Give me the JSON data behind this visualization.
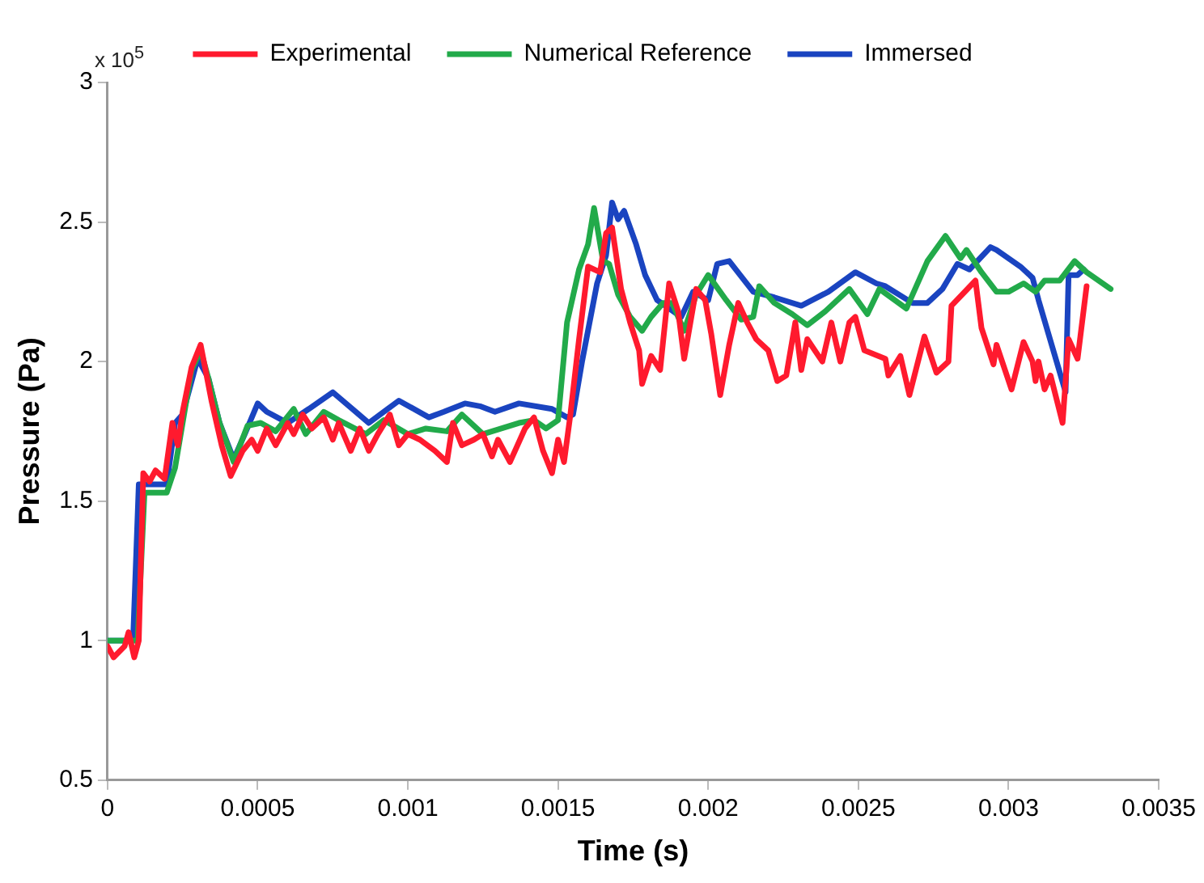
{
  "chart_data": {
    "type": "line",
    "xlabel": "Time (s)",
    "ylabel": "Pressure (Pa)",
    "annotations": [
      "x 10$^{5}$"
    ],
    "xlim": [
      0,
      0.0035
    ],
    "xticks": [
      0,
      0.0005,
      0.001,
      0.0015,
      0.002,
      0.0025,
      0.003,
      0.0035
    ],
    "ylim": [
      0.5,
      3
    ],
    "yticks": [
      0.5,
      1,
      1.5,
      2,
      2.5,
      3
    ],
    "grid": false,
    "legend": "top",
    "marker": "none",
    "line_style": "solid",
    "series": [
      {
        "name": "Experimental",
        "color": "#ff1a2e",
        "x": [
          0,
          2e-05,
          5.7e-05,
          7e-05,
          8.9e-05,
          0.000104,
          0.000119,
          0.00014,
          0.00016,
          0.00019,
          0.000216,
          0.000234,
          0.00025,
          0.00028,
          0.00031,
          0.000346,
          0.00038,
          0.00041,
          0.00045,
          0.00048,
          0.0005,
          0.00053,
          0.00056,
          0.0006,
          0.00062,
          0.00065,
          0.00068,
          0.00072,
          0.00075,
          0.00077,
          0.00081,
          0.00084,
          0.00087,
          0.0009,
          0.00094,
          0.00097,
          0.001,
          0.00104,
          0.00109,
          0.00113,
          0.00115,
          0.00118,
          0.00122,
          0.00125,
          0.00128,
          0.0013,
          0.00134,
          0.00139,
          0.00142,
          0.00145,
          0.00148,
          0.0015,
          0.00152,
          0.00154,
          0.00157,
          0.0016,
          0.00164,
          0.00166,
          0.00168,
          0.00171,
          0.00174,
          0.00177,
          0.00178,
          0.00181,
          0.00184,
          0.00187,
          0.0019,
          0.00192,
          0.00196,
          0.00199,
          0.00201,
          0.00204,
          0.00207,
          0.0021,
          0.00213,
          0.00216,
          0.0022,
          0.00223,
          0.00226,
          0.00229,
          0.00231,
          0.00233,
          0.00238,
          0.00241,
          0.00244,
          0.00247,
          0.00249,
          0.00252,
          0.00259,
          0.0026,
          0.00264,
          0.00267,
          0.00272,
          0.00276,
          0.0028,
          0.00281,
          0.00289,
          0.00291,
          0.00295,
          0.00296,
          0.00301,
          0.00305,
          0.00308,
          0.00309,
          0.0031,
          0.00312,
          0.00314,
          0.00318,
          0.0032,
          0.00323,
          0.00326
        ],
        "values": [
          0.98,
          0.94,
          0.98,
          1.03,
          0.94,
          1.0,
          1.6,
          1.57,
          1.61,
          1.58,
          1.78,
          1.7,
          1.82,
          1.98,
          2.06,
          1.86,
          1.7,
          1.59,
          1.68,
          1.72,
          1.68,
          1.76,
          1.7,
          1.78,
          1.74,
          1.81,
          1.76,
          1.8,
          1.72,
          1.78,
          1.68,
          1.76,
          1.68,
          1.74,
          1.81,
          1.7,
          1.74,
          1.72,
          1.68,
          1.64,
          1.78,
          1.7,
          1.72,
          1.74,
          1.66,
          1.72,
          1.64,
          1.76,
          1.8,
          1.68,
          1.6,
          1.72,
          1.64,
          1.8,
          2.08,
          2.34,
          2.32,
          2.46,
          2.48,
          2.26,
          2.14,
          2.04,
          1.92,
          2.02,
          1.97,
          2.28,
          2.18,
          2.01,
          2.26,
          2.22,
          2.1,
          1.88,
          2.06,
          2.21,
          2.14,
          2.08,
          2.04,
          1.93,
          1.95,
          2.14,
          1.97,
          2.08,
          2.0,
          2.14,
          2.0,
          2.14,
          2.16,
          2.04,
          2.01,
          1.95,
          2.02,
          1.88,
          2.09,
          1.96,
          2.0,
          2.2,
          2.29,
          2.12,
          1.99,
          2.06,
          1.9,
          2.07,
          2.0,
          1.93,
          2.0,
          1.9,
          1.95,
          1.78,
          2.08,
          2.01,
          2.27
        ]
      },
      {
        "name": "Numerical Reference",
        "color": "#22aa4a",
        "x": [
          0,
          0.0001,
          0.000123,
          0.000197,
          0.000225,
          0.00025,
          0.00028,
          0.00031,
          0.000336,
          0.000373,
          0.00042,
          0.000466,
          0.00051,
          0.00056,
          0.00062,
          0.00066,
          0.00072,
          0.00077,
          0.00086,
          0.00092,
          0.001,
          0.00106,
          0.00113,
          0.00118,
          0.00125,
          0.00137,
          0.00142,
          0.00146,
          0.0015,
          0.00153,
          0.00157,
          0.0016,
          0.00162,
          0.00165,
          0.00167,
          0.0017,
          0.00174,
          0.00178,
          0.00181,
          0.00185,
          0.00188,
          0.00192,
          0.00196,
          0.002,
          0.00206,
          0.00211,
          0.00215,
          0.00217,
          0.00222,
          0.00228,
          0.00233,
          0.00239,
          0.00247,
          0.00253,
          0.00257,
          0.00266,
          0.00273,
          0.00279,
          0.00284,
          0.00286,
          0.00291,
          0.00296,
          0.003,
          0.00305,
          0.00309,
          0.00312,
          0.00317,
          0.00322,
          0.00326,
          0.00334
        ],
        "values": [
          1.0,
          1.0,
          1.53,
          1.53,
          1.62,
          1.78,
          1.97,
          2.04,
          1.94,
          1.78,
          1.64,
          1.77,
          1.78,
          1.75,
          1.83,
          1.74,
          1.82,
          1.79,
          1.74,
          1.79,
          1.74,
          1.76,
          1.75,
          1.81,
          1.74,
          1.78,
          1.79,
          1.76,
          1.79,
          2.14,
          2.33,
          2.42,
          2.55,
          2.36,
          2.35,
          2.24,
          2.16,
          2.11,
          2.16,
          2.21,
          2.21,
          2.11,
          2.24,
          2.31,
          2.22,
          2.15,
          2.16,
          2.27,
          2.21,
          2.17,
          2.13,
          2.18,
          2.26,
          2.17,
          2.26,
          2.19,
          2.36,
          2.45,
          2.37,
          2.4,
          2.32,
          2.25,
          2.25,
          2.28,
          2.25,
          2.29,
          2.29,
          2.36,
          2.32,
          2.26
        ]
      },
      {
        "name": "Immersed",
        "color": "#1a44c0",
        "x": [
          0,
          8.5e-05,
          0.000104,
          0.000197,
          0.000225,
          0.00025,
          0.0003,
          0.000336,
          0.000373,
          0.00042,
          0.000457,
          0.0005,
          0.00053,
          0.0006,
          0.00067,
          0.00075,
          0.00087,
          0.00097,
          0.00107,
          0.00112,
          0.00119,
          0.00124,
          0.00129,
          0.00137,
          0.00148,
          0.00153,
          0.00155,
          0.00158,
          0.00163,
          0.00166,
          0.00168,
          0.0017,
          0.00172,
          0.00176,
          0.00179,
          0.00183,
          0.00191,
          0.00195,
          0.002,
          0.00203,
          0.00207,
          0.00215,
          0.00222,
          0.00231,
          0.0024,
          0.00249,
          0.00256,
          0.00259,
          0.00268,
          0.00273,
          0.00278,
          0.00283,
          0.00287,
          0.00294,
          0.00296,
          0.00304,
          0.00308,
          0.0031,
          0.00319,
          0.0032,
          0.00323,
          0.00325
        ],
        "values": [
          1.0,
          1.0,
          1.56,
          1.56,
          1.78,
          1.81,
          2.01,
          1.94,
          1.78,
          1.65,
          1.74,
          1.85,
          1.82,
          1.78,
          1.83,
          1.89,
          1.78,
          1.86,
          1.8,
          1.82,
          1.85,
          1.84,
          1.82,
          1.85,
          1.83,
          1.8,
          1.81,
          2.0,
          2.28,
          2.38,
          2.57,
          2.51,
          2.54,
          2.42,
          2.31,
          2.22,
          2.16,
          2.25,
          2.22,
          2.35,
          2.36,
          2.25,
          2.23,
          2.2,
          2.25,
          2.32,
          2.28,
          2.27,
          2.21,
          2.21,
          2.26,
          2.35,
          2.33,
          2.41,
          2.4,
          2.34,
          2.3,
          2.22,
          1.89,
          2.31,
          2.31,
          2.33
        ]
      }
    ]
  }
}
